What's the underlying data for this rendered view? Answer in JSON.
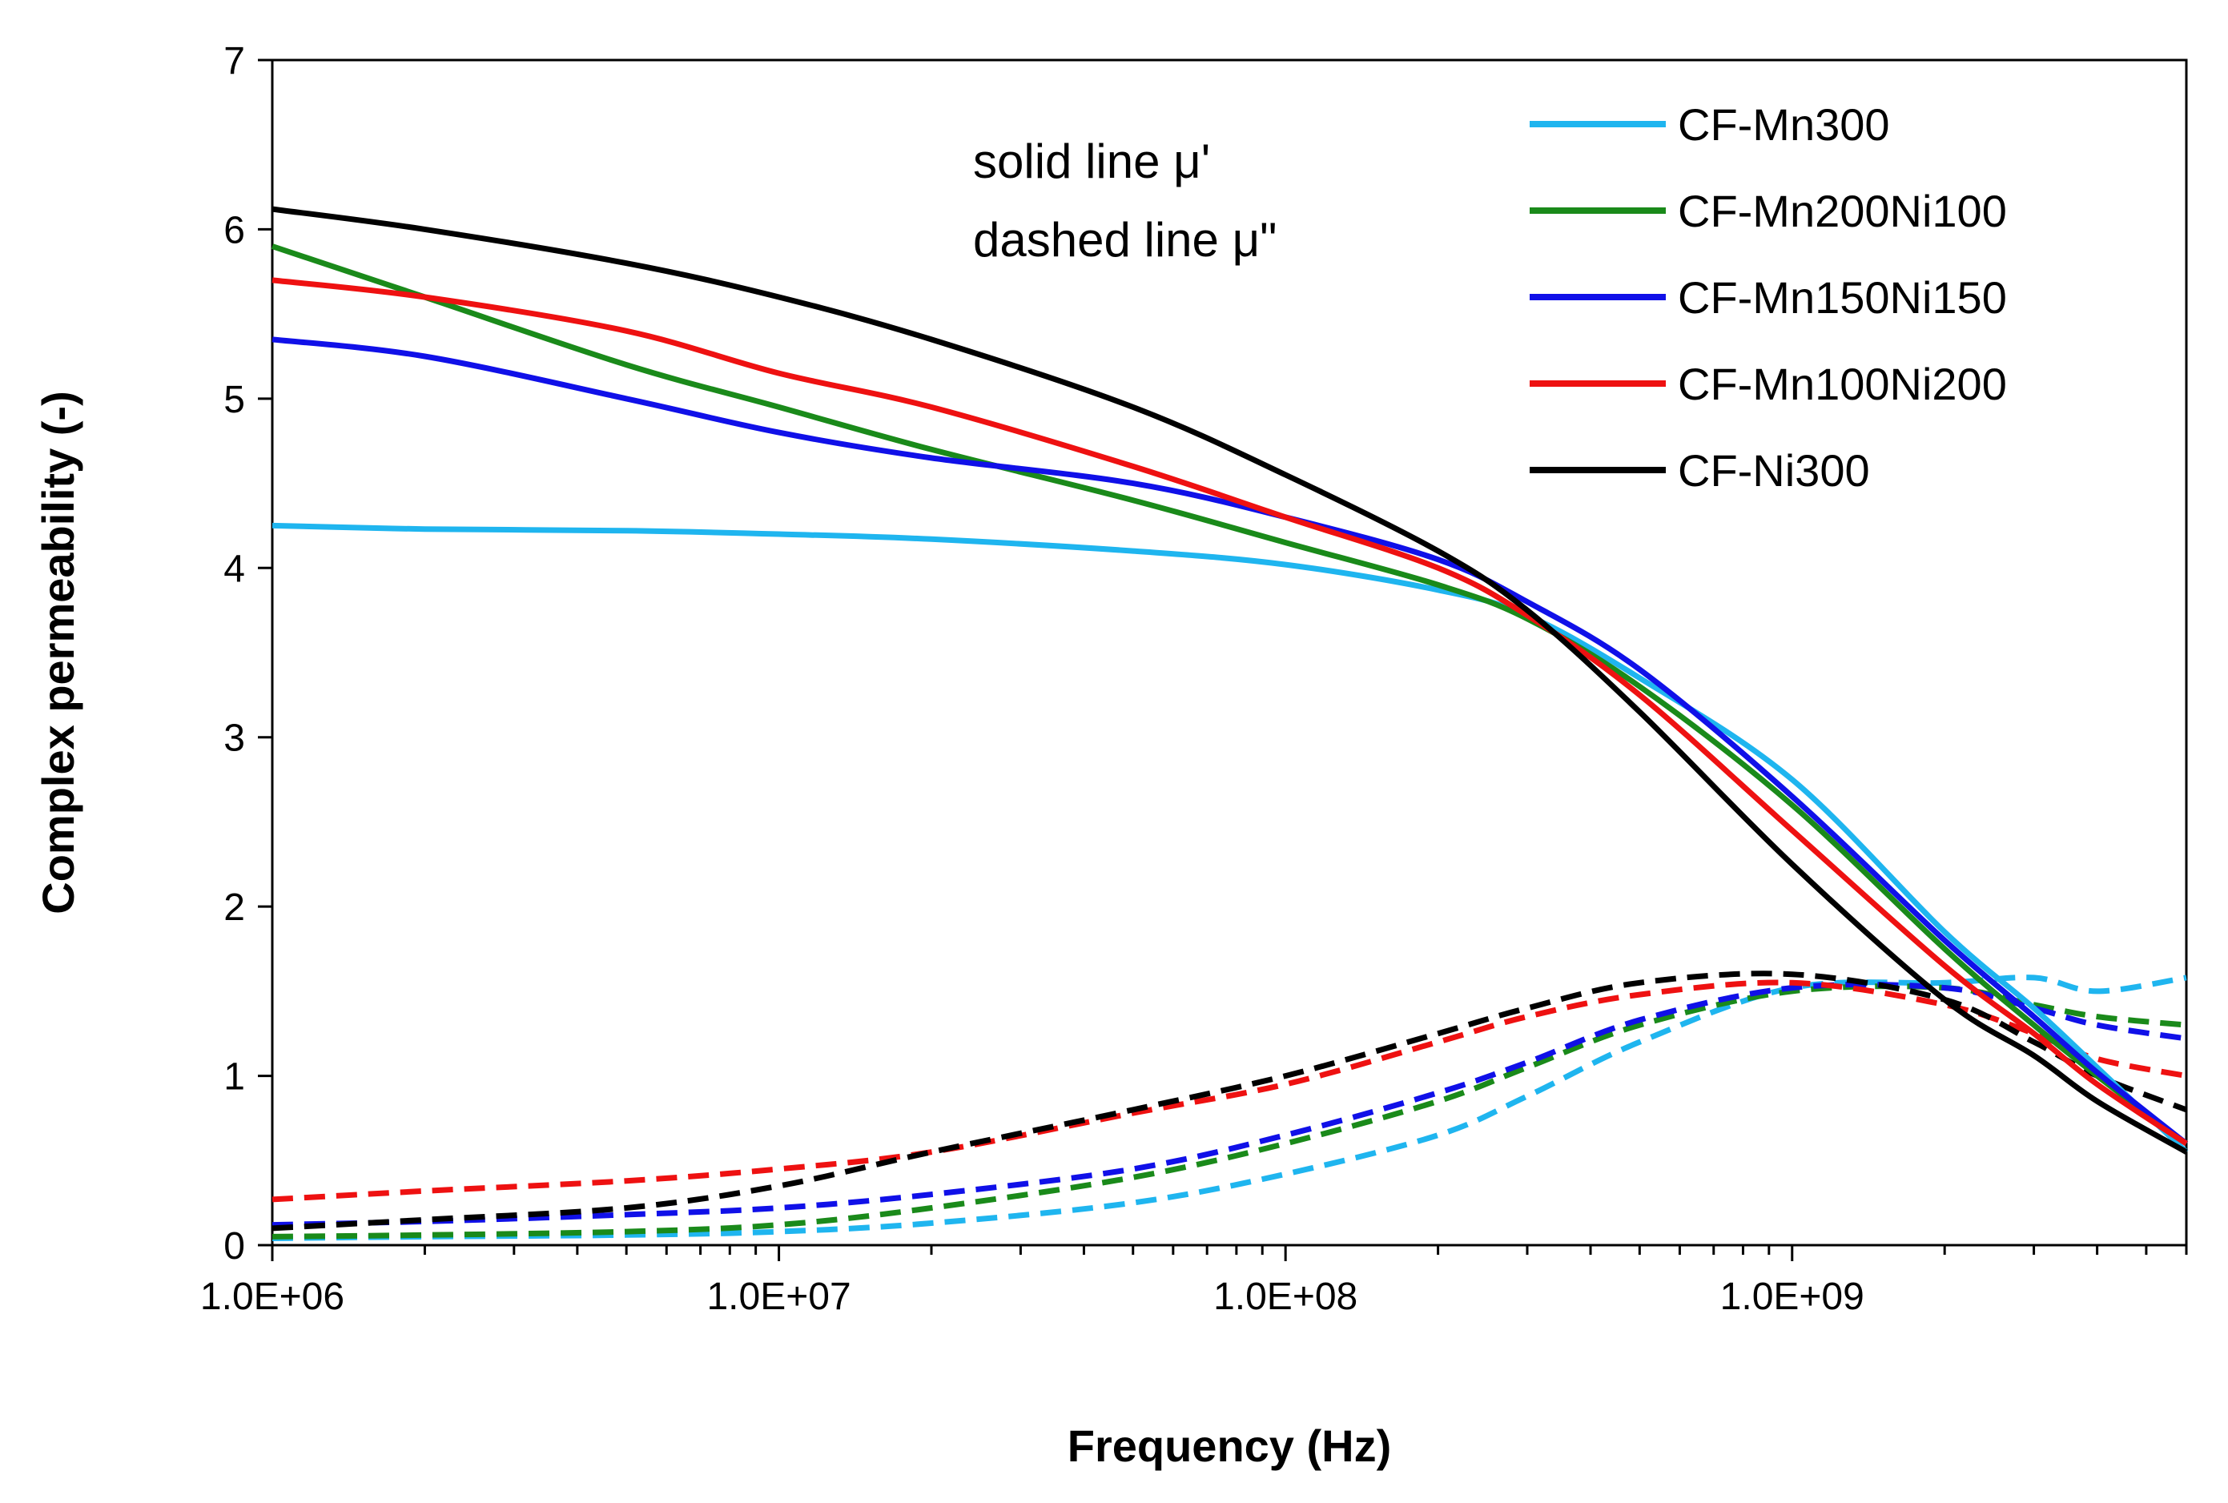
{
  "chart_data": {
    "type": "line",
    "xlabel": "Frequency (Hz)",
    "ylabel": "Complex permeability (-)",
    "x_scale": "log",
    "xlim": [
      1000000,
      6000000000
    ],
    "ylim": [
      0,
      7
    ],
    "x_ticks": [
      {
        "value": 1000000,
        "label": "1.0E+06"
      },
      {
        "value": 10000000,
        "label": "1.0E+07"
      },
      {
        "value": 100000000,
        "label": "1.0E+08"
      },
      {
        "value": 1000000000,
        "label": "1.0E+09"
      }
    ],
    "y_ticks": [
      0,
      1,
      2,
      3,
      4,
      5,
      6,
      7
    ],
    "grid": false,
    "legend_position": "top-right",
    "annotations": [
      "solid line μ'",
      "dashed line μ\""
    ],
    "x": [
      1000000,
      2000000,
      5000000,
      10000000,
      20000000,
      50000000,
      100000000,
      200000000,
      300000000,
      500000000,
      1000000000,
      2000000000,
      3000000000,
      4000000000,
      6000000000
    ],
    "series": [
      {
        "name": "CF-Mn300",
        "color": "#1fb5ef",
        "style": "solid",
        "values": [
          4.25,
          4.23,
          4.22,
          4.2,
          4.17,
          4.1,
          4.02,
          3.87,
          3.72,
          3.35,
          2.75,
          1.85,
          1.4,
          1.05,
          0.55
        ]
      },
      {
        "name": "CF-Mn200Ni100",
        "color": "#1a8a1a",
        "style": "solid",
        "values": [
          5.9,
          5.6,
          5.2,
          4.95,
          4.7,
          4.4,
          4.15,
          3.9,
          3.7,
          3.3,
          2.6,
          1.75,
          1.3,
          1.0,
          0.6
        ]
      },
      {
        "name": "CF-Mn150Ni150",
        "color": "#1010e8",
        "style": "solid",
        "values": [
          5.35,
          5.25,
          5.0,
          4.8,
          4.65,
          4.5,
          4.3,
          4.05,
          3.8,
          3.4,
          2.65,
          1.8,
          1.35,
          1.02,
          0.6
        ]
      },
      {
        "name": "CF-Mn100Ni200",
        "color": "#ee1111",
        "style": "solid",
        "values": [
          5.7,
          5.6,
          5.4,
          5.15,
          4.95,
          4.6,
          4.3,
          4.0,
          3.72,
          3.25,
          2.45,
          1.65,
          1.25,
          0.95,
          0.6
        ]
      },
      {
        "name": "CF-Ni300",
        "color": "#000000",
        "style": "solid",
        "values": [
          6.12,
          6.0,
          5.8,
          5.6,
          5.35,
          4.95,
          4.55,
          4.1,
          3.75,
          3.15,
          2.25,
          1.45,
          1.12,
          0.85,
          0.55
        ]
      },
      {
        "name": "CF-Mn300",
        "color": "#1fb5ef",
        "style": "dashed",
        "values": [
          0.04,
          0.05,
          0.06,
          0.08,
          0.13,
          0.25,
          0.42,
          0.65,
          0.88,
          1.2,
          1.52,
          1.55,
          1.58,
          1.5,
          1.58
        ]
      },
      {
        "name": "CF-Mn200Ni100",
        "color": "#1a8a1a",
        "style": "dashed",
        "values": [
          0.05,
          0.06,
          0.08,
          0.12,
          0.22,
          0.4,
          0.6,
          0.85,
          1.05,
          1.3,
          1.5,
          1.52,
          1.42,
          1.35,
          1.3
        ]
      },
      {
        "name": "CF-Mn150Ni150",
        "color": "#1010e8",
        "style": "dashed",
        "values": [
          0.12,
          0.14,
          0.18,
          0.22,
          0.3,
          0.45,
          0.65,
          0.9,
          1.08,
          1.33,
          1.52,
          1.52,
          1.4,
          1.3,
          1.22
        ]
      },
      {
        "name": "CF-Mn100Ni200",
        "color": "#ee1111",
        "style": "dashed",
        "values": [
          0.27,
          0.32,
          0.38,
          0.45,
          0.55,
          0.78,
          0.95,
          1.2,
          1.35,
          1.48,
          1.55,
          1.42,
          1.25,
          1.1,
          1.0
        ]
      },
      {
        "name": "CF-Ni300",
        "color": "#000000",
        "style": "dashed",
        "values": [
          0.1,
          0.15,
          0.22,
          0.35,
          0.55,
          0.8,
          1.0,
          1.25,
          1.4,
          1.55,
          1.6,
          1.45,
          1.2,
          1.0,
          0.8
        ]
      }
    ]
  }
}
